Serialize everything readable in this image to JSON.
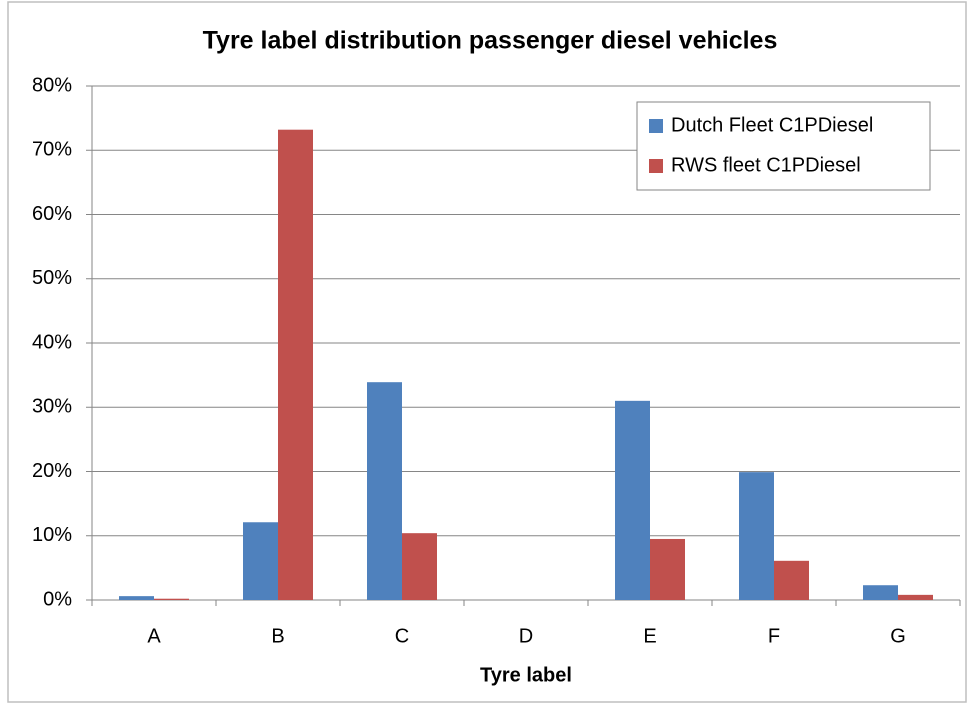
{
  "chart_data": {
    "type": "bar",
    "title": "Tyre label distribution passenger diesel vehicles",
    "x_label": "Tyre label",
    "categories": [
      "A",
      "B",
      "C",
      "D",
      "E",
      "F",
      "G"
    ],
    "series": [
      {
        "name": "Dutch Fleet C1PDiesel",
        "color": "#4f81bd",
        "values": [
          0.6,
          12.1,
          33.9,
          0,
          31.0,
          19.9,
          2.3
        ]
      },
      {
        "name": "RWS fleet C1PDiesel",
        "color": "#c0504d",
        "values": [
          0.2,
          73.2,
          10.4,
          0,
          9.5,
          6.1,
          0.8
        ]
      }
    ],
    "ylim": [
      0,
      80
    ],
    "yticks": [
      {
        "value": 0,
        "label": "0%"
      },
      {
        "value": 10,
        "label": "10%"
      },
      {
        "value": 20,
        "label": "20%"
      },
      {
        "value": 30,
        "label": "30%"
      },
      {
        "value": 40,
        "label": "40%"
      },
      {
        "value": 50,
        "label": "50%"
      },
      {
        "value": 60,
        "label": "60%"
      },
      {
        "value": 70,
        "label": "70%"
      },
      {
        "value": 80,
        "label": "80%"
      }
    ],
    "grid": true,
    "legend": "upper right"
  }
}
